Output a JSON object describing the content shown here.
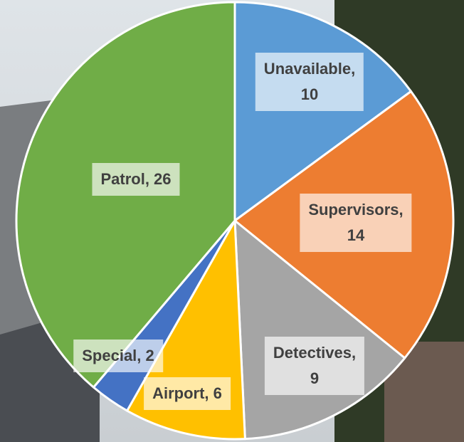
{
  "chart_data": {
    "type": "pie",
    "values": [
      10,
      14,
      9,
      6,
      2,
      26
    ],
    "value_labels": [
      "Unavailable,\n10",
      "Supervisors,\n14",
      "Detectives,\n9",
      "Airport, 6",
      "Special, 2",
      "Patrol, 26"
    ],
    "colors": [
      "#5b9bd5",
      "#ed7d31",
      "#a5a5a5",
      "#ffc000",
      "#4472c4",
      "#70ad47"
    ]
  }
}
